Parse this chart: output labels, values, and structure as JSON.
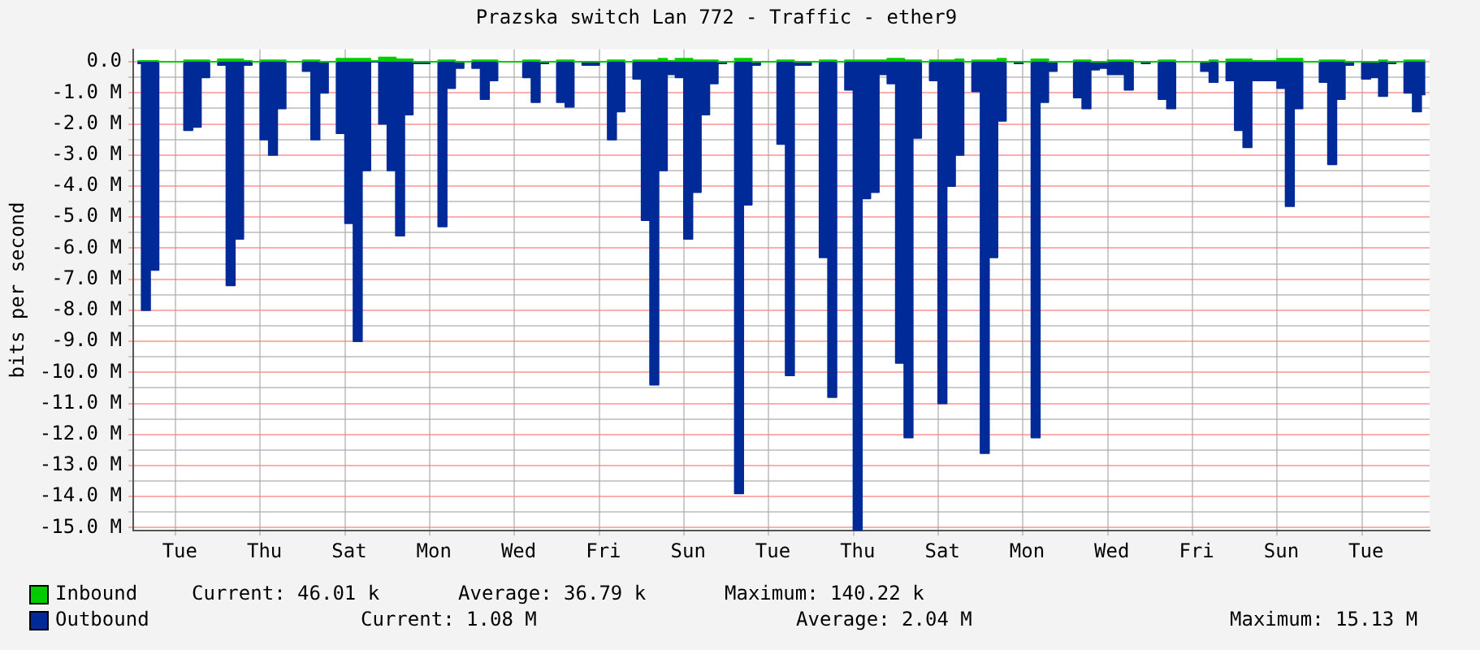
{
  "chart_data": {
    "type": "area",
    "title": "Prazska switch Lan 772 - Traffic - ether9",
    "ylabel": "bits per second",
    "categories": [
      null,
      null,
      null,
      null,
      null,
      "Tue",
      null,
      null,
      null,
      null,
      null,
      null,
      null,
      null,
      null,
      "Thu",
      null,
      null,
      null,
      null,
      null,
      null,
      null,
      null,
      null,
      "Sat",
      null,
      null,
      null,
      null,
      null,
      null,
      null,
      null,
      null,
      "Mon",
      null,
      null,
      null,
      null,
      null,
      null,
      null,
      null,
      null,
      "Wed",
      null,
      null,
      null,
      null,
      null,
      null,
      null,
      null,
      null,
      "Fri",
      null,
      null,
      null,
      null,
      null,
      null,
      null,
      null,
      null,
      "Sun",
      null,
      null,
      null,
      null,
      null,
      null,
      null,
      null,
      null,
      "Tue",
      null,
      null,
      null,
      null,
      null,
      null,
      null,
      null,
      null,
      "Thu",
      null,
      null,
      null,
      null,
      null,
      null,
      null,
      null,
      null,
      "Sat",
      null,
      null,
      null,
      null,
      null,
      null,
      null,
      null,
      null,
      "Mon",
      null,
      null,
      null,
      null,
      null,
      null,
      null,
      null,
      null,
      "Wed",
      null,
      null,
      null,
      null,
      null,
      null,
      null,
      null,
      null,
      "Fri",
      null,
      null,
      null,
      null,
      null,
      null,
      null,
      null,
      null,
      "Sun",
      null,
      null,
      null,
      null,
      null,
      null,
      null,
      null,
      null,
      "Tue",
      null,
      null,
      null,
      null,
      null,
      null,
      null
    ],
    "series": [
      {
        "name": "Inbound",
        "color": "#00cc00",
        "values": [
          0.03,
          0.03,
          0.03,
          0,
          0,
          0,
          0.05,
          0.05,
          0.05,
          0,
          0.08,
          0.08,
          0.08,
          0.03,
          0,
          0.05,
          0.05,
          0.05,
          0,
          0,
          0.05,
          0.05,
          0,
          0,
          0.1,
          0.1,
          0.1,
          0.1,
          0.03,
          0.14,
          0.14,
          0.08,
          0.08,
          0,
          0,
          0,
          0.05,
          0.05,
          0,
          0,
          0.05,
          0.05,
          0.05,
          0,
          0,
          0,
          0.05,
          0.05,
          0,
          0,
          0.05,
          0.05,
          0,
          0,
          0,
          0,
          0.05,
          0.05,
          0,
          0.05,
          0.05,
          0.05,
          0.1,
          0.03,
          0.1,
          0.1,
          0.05,
          0.05,
          0.05,
          0,
          0,
          0.1,
          0.1,
          0,
          0,
          0,
          0.05,
          0.05,
          0,
          0,
          0,
          0.05,
          0.05,
          0,
          0.05,
          0.05,
          0.05,
          0.05,
          0.05,
          0.1,
          0.1,
          0.05,
          0.05,
          0,
          0.05,
          0.05,
          0.05,
          0.08,
          0,
          0.05,
          0.05,
          0.05,
          0.1,
          0,
          0,
          0,
          0.08,
          0.08,
          0,
          0,
          0,
          0.05,
          0.05,
          0,
          0,
          0.05,
          0.05,
          0.05,
          0,
          0,
          0,
          0.05,
          0.05,
          0,
          0,
          0,
          0,
          0.05,
          0,
          0.08,
          0.08,
          0.08,
          0.03,
          0.03,
          0.03,
          0.1,
          0.1,
          0.1,
          0,
          0,
          0.05,
          0.05,
          0.05,
          0,
          0,
          0,
          0,
          0.05,
          0,
          0,
          0.05,
          0.05,
          0.05
        ]
      },
      {
        "name": "Outbound",
        "color": "#002a97",
        "values": [
          -0.05,
          -8.0,
          -6.7,
          0,
          0,
          0,
          -2.2,
          -2.1,
          -0.5,
          0,
          -0.1,
          -7.2,
          -5.7,
          -0.1,
          0,
          -2.5,
          -3.0,
          -1.5,
          0,
          0,
          -0.3,
          -2.5,
          -1.0,
          0,
          -2.3,
          -5.2,
          -9.0,
          -3.5,
          0,
          -2.0,
          -3.5,
          -5.6,
          -1.7,
          -0.05,
          -0.05,
          0,
          -5.3,
          -0.85,
          -0.2,
          0,
          -0.2,
          -1.2,
          -0.6,
          0,
          0,
          0,
          -0.5,
          -1.3,
          -0.05,
          0,
          -1.3,
          -1.45,
          0,
          -0.1,
          -0.1,
          0,
          -2.5,
          -1.6,
          0,
          -0.55,
          -5.1,
          -10.4,
          -3.5,
          -0.4,
          -0.5,
          -5.7,
          -4.2,
          -1.7,
          -0.7,
          -0.05,
          0,
          -13.9,
          -4.6,
          -0.1,
          0,
          0,
          -2.65,
          -10.1,
          -0.1,
          -0.1,
          0,
          -6.3,
          -10.8,
          0,
          -0.9,
          -15.1,
          -4.4,
          -4.2,
          -0.4,
          -0.7,
          -9.7,
          -12.1,
          -2.45,
          0,
          -0.6,
          -11.0,
          -4.0,
          -3.0,
          0,
          -0.95,
          -12.6,
          -6.3,
          -1.9,
          0,
          -0.05,
          0,
          -12.1,
          -1.3,
          -0.3,
          0,
          0,
          -1.15,
          -1.5,
          -0.25,
          -0.2,
          -0.4,
          -0.4,
          -0.9,
          0,
          -0.05,
          0,
          -1.2,
          -1.5,
          0,
          0,
          0,
          -0.3,
          -0.65,
          0,
          -0.6,
          -2.2,
          -2.75,
          -0.6,
          -0.6,
          -0.6,
          -0.85,
          -4.65,
          -1.5,
          0,
          0,
          -0.65,
          -3.3,
          -1.2,
          -0.1,
          0,
          -0.55,
          -0.5,
          -1.1,
          -0.05,
          0,
          -1.0,
          -1.6,
          -1.05
        ]
      }
    ],
    "ylim": [
      -15.1,
      0.4
    ],
    "yticks": [
      {
        "value": 0,
        "label": "0.0"
      },
      {
        "value": -0.5,
        "label": null
      },
      {
        "value": -1,
        "label": "-1.0 M"
      },
      {
        "value": -1.5,
        "label": null
      },
      {
        "value": -2,
        "label": "-2.0 M"
      },
      {
        "value": -2.5,
        "label": null
      },
      {
        "value": -3,
        "label": "-3.0 M"
      },
      {
        "value": -3.5,
        "label": null
      },
      {
        "value": -4,
        "label": "-4.0 M"
      },
      {
        "value": -4.5,
        "label": null
      },
      {
        "value": -5,
        "label": "-5.0 M"
      },
      {
        "value": -5.5,
        "label": null
      },
      {
        "value": -6,
        "label": "-6.0 M"
      },
      {
        "value": -6.5,
        "label": null
      },
      {
        "value": -7,
        "label": "-7.0 M"
      },
      {
        "value": -7.5,
        "label": null
      },
      {
        "value": -8,
        "label": "-8.0 M"
      },
      {
        "value": -8.5,
        "label": null
      },
      {
        "value": -9,
        "label": "-9.0 M"
      },
      {
        "value": -9.5,
        "label": null
      },
      {
        "value": -10,
        "label": "-10.0 M"
      },
      {
        "value": -10.5,
        "label": null
      },
      {
        "value": -11,
        "label": "-11.0 M"
      },
      {
        "value": -11.5,
        "label": null
      },
      {
        "value": -12,
        "label": "-12.0 M"
      },
      {
        "value": -12.5,
        "label": null
      },
      {
        "value": -13,
        "label": "-13.0 M"
      },
      {
        "value": -13.5,
        "label": null
      },
      {
        "value": -14,
        "label": "-14.0 M"
      },
      {
        "value": -14.5,
        "label": null
      },
      {
        "value": -15,
        "label": "-15.0 M"
      }
    ],
    "grid": true,
    "legend": "bottom",
    "annotations": [
      "Current: 46.01 k",
      "Average: 36.79 k",
      "Maximum: 140.22 k",
      "Current: 1.08 M",
      "Average: 2.04 M",
      "Maximum: 15.13 M"
    ]
  }
}
